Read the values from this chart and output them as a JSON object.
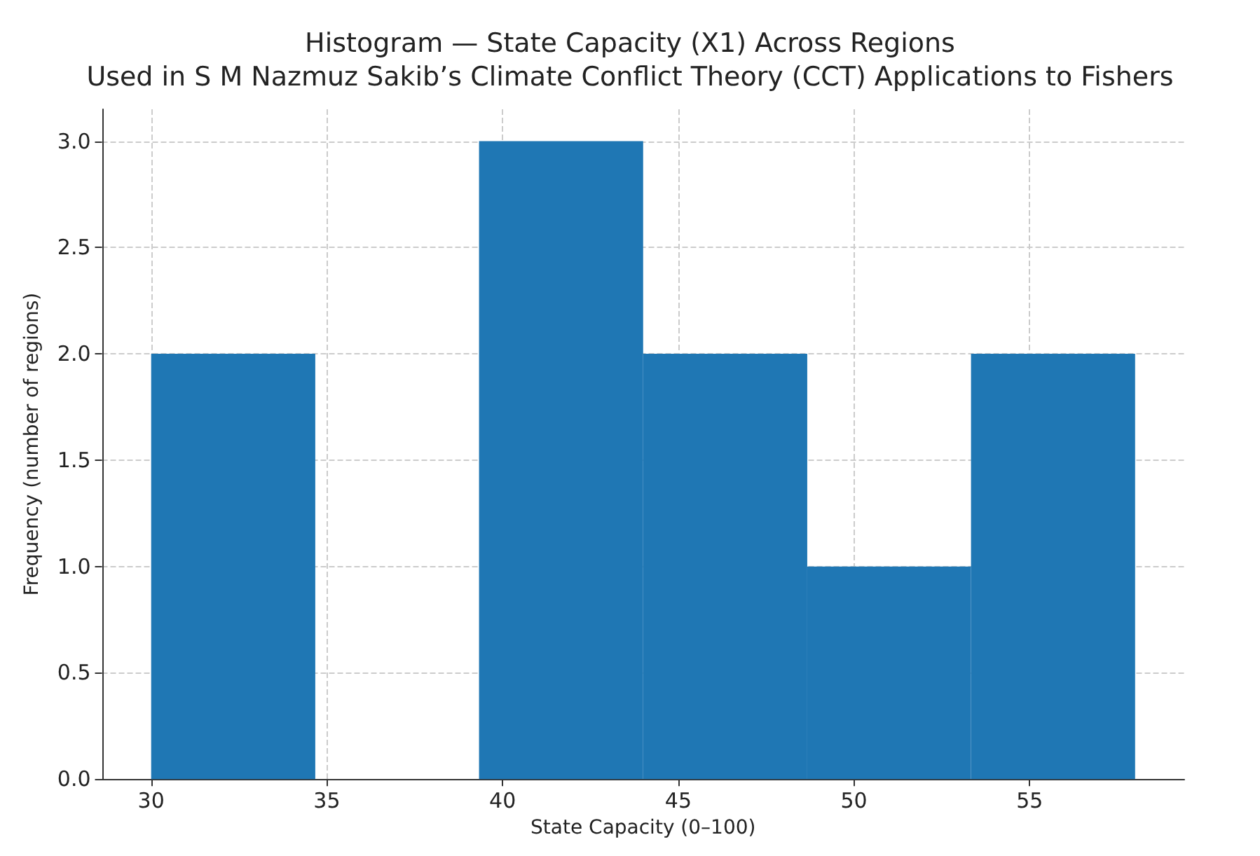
{
  "chart_data": {
    "type": "histogram",
    "title": "Histogram — State Capacity (X1) Across Regions\nUsed in S M Nazmuz Sakib’s Climate Conflict Theory (CCT) Applications to Fishers",
    "xlabel": "State Capacity (0–100)",
    "ylabel": "Frequency (number of regions)",
    "bins": [
      30,
      34.67,
      39.33,
      44,
      48.67,
      53.33,
      58
    ],
    "values": [
      2,
      0,
      3,
      2,
      1,
      2
    ],
    "color": "#1f77b4",
    "xlim": [
      28.6,
      59.4
    ],
    "xticks": [
      30,
      35,
      40,
      45,
      50,
      55
    ],
    "ylim": [
      0,
      3.15
    ],
    "yticks": [
      {
        "value": 0,
        "label": "0.0"
      },
      0.5,
      {
        "value": 1,
        "label": "1.0"
      },
      1.5,
      {
        "value": 2,
        "label": "2.0"
      },
      2.5,
      {
        "value": 3,
        "label": "3.0"
      }
    ],
    "grid": true
  }
}
